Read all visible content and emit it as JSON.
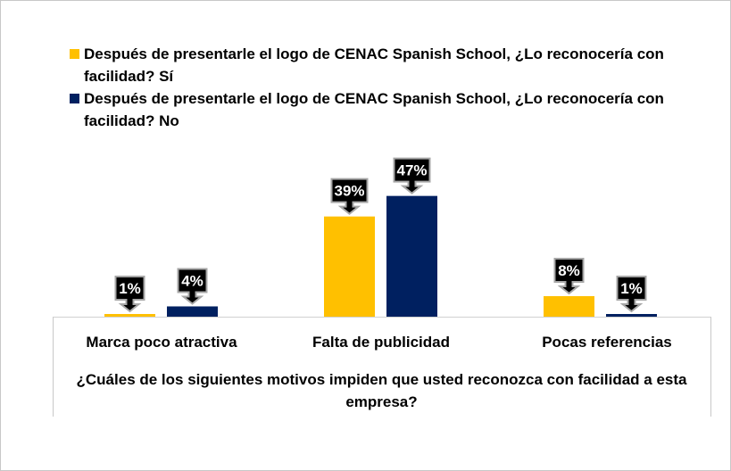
{
  "chart_data": {
    "type": "bar",
    "title": "",
    "xlabel": "¿Cuáles de los siguientes motivos impiden que usted reconozca con facilidad a esta empresa?",
    "ylabel": "",
    "ylim": [
      0,
      50
    ],
    "grid": false,
    "legend_position": "top",
    "categories": [
      "Marca poco atractiva",
      "Falta de publicidad",
      "Pocas referencias"
    ],
    "series": [
      {
        "name": "Después de presentarle el logo de CENAC Spanish School, ¿Lo reconocería con facilidad? Sí",
        "color": "#FFC000",
        "values": [
          1,
          39,
          8
        ],
        "labels": [
          "1%",
          "39%",
          "8%"
        ]
      },
      {
        "name": "Después de presentarle el logo de CENAC Spanish School, ¿Lo reconocería con facilidad? No",
        "color": "#002060",
        "values": [
          4,
          47,
          1
        ],
        "labels": [
          "4%",
          "47%",
          "1%"
        ]
      }
    ]
  }
}
